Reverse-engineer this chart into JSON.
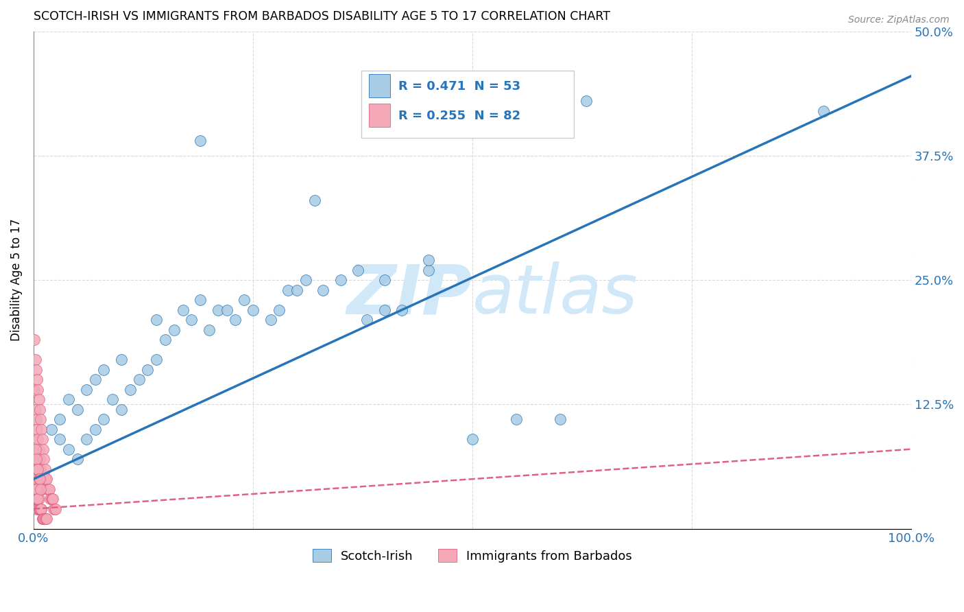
{
  "title": "SCOTCH-IRISH VS IMMIGRANTS FROM BARBADOS DISABILITY AGE 5 TO 17 CORRELATION CHART",
  "source": "Source: ZipAtlas.com",
  "ylabel": "Disability Age 5 to 17",
  "xlim": [
    0,
    1.0
  ],
  "ylim": [
    0,
    0.5
  ],
  "legend_label1": "Scotch-Irish",
  "legend_label2": "Immigrants from Barbados",
  "R1": 0.471,
  "N1": 53,
  "R2": 0.255,
  "N2": 82,
  "color_blue": "#a8cce4",
  "color_pink": "#f4a8b8",
  "color_blue_dark": "#2874b8",
  "color_pink_dark": "#e06080",
  "color_axis_labels": "#2874b8",
  "watermark_color": "#d0e8f8",
  "scotch_irish_x": [
    0.02,
    0.03,
    0.03,
    0.04,
    0.04,
    0.05,
    0.05,
    0.06,
    0.06,
    0.07,
    0.07,
    0.08,
    0.08,
    0.09,
    0.1,
    0.1,
    0.11,
    0.12,
    0.13,
    0.14,
    0.14,
    0.15,
    0.16,
    0.17,
    0.18,
    0.19,
    0.2,
    0.21,
    0.22,
    0.23,
    0.24,
    0.25,
    0.27,
    0.28,
    0.29,
    0.3,
    0.31,
    0.33,
    0.35,
    0.37,
    0.38,
    0.4,
    0.4,
    0.42,
    0.45,
    0.5,
    0.55,
    0.6,
    0.63,
    0.9,
    0.19,
    0.32,
    0.45
  ],
  "scotch_irish_y": [
    0.1,
    0.09,
    0.11,
    0.08,
    0.13,
    0.07,
    0.12,
    0.09,
    0.14,
    0.1,
    0.15,
    0.11,
    0.16,
    0.13,
    0.12,
    0.17,
    0.14,
    0.15,
    0.16,
    0.17,
    0.21,
    0.19,
    0.2,
    0.22,
    0.21,
    0.23,
    0.2,
    0.22,
    0.22,
    0.21,
    0.23,
    0.22,
    0.21,
    0.22,
    0.24,
    0.24,
    0.25,
    0.24,
    0.25,
    0.26,
    0.21,
    0.22,
    0.25,
    0.22,
    0.26,
    0.09,
    0.11,
    0.11,
    0.43,
    0.42,
    0.39,
    0.33,
    0.27
  ],
  "barbados_x": [
    0.001,
    0.001,
    0.001,
    0.002,
    0.002,
    0.002,
    0.003,
    0.003,
    0.003,
    0.004,
    0.004,
    0.004,
    0.005,
    0.005,
    0.005,
    0.006,
    0.006,
    0.007,
    0.007,
    0.008,
    0.008,
    0.009,
    0.009,
    0.01,
    0.01,
    0.011,
    0.012,
    0.013,
    0.014,
    0.015,
    0.016,
    0.017,
    0.018,
    0.019,
    0.02,
    0.021,
    0.022,
    0.023,
    0.024,
    0.025,
    0.001,
    0.001,
    0.002,
    0.002,
    0.003,
    0.003,
    0.004,
    0.004,
    0.005,
    0.005,
    0.006,
    0.006,
    0.007,
    0.008,
    0.009,
    0.01,
    0.011,
    0.012,
    0.013,
    0.014,
    0.001,
    0.002,
    0.003,
    0.004,
    0.005,
    0.006,
    0.007,
    0.008,
    0.009,
    0.01,
    0.011,
    0.012,
    0.013,
    0.014,
    0.015,
    0.002,
    0.003,
    0.004,
    0.005,
    0.006,
    0.007,
    0.008
  ],
  "barbados_y": [
    0.19,
    0.14,
    0.09,
    0.17,
    0.12,
    0.07,
    0.16,
    0.11,
    0.06,
    0.15,
    0.1,
    0.05,
    0.14,
    0.09,
    0.04,
    0.13,
    0.08,
    0.12,
    0.07,
    0.11,
    0.06,
    0.1,
    0.05,
    0.09,
    0.04,
    0.08,
    0.07,
    0.06,
    0.05,
    0.05,
    0.04,
    0.04,
    0.04,
    0.03,
    0.03,
    0.03,
    0.03,
    0.02,
    0.02,
    0.02,
    0.05,
    0.03,
    0.05,
    0.03,
    0.05,
    0.03,
    0.04,
    0.02,
    0.04,
    0.02,
    0.03,
    0.02,
    0.02,
    0.02,
    0.02,
    0.01,
    0.01,
    0.01,
    0.01,
    0.01,
    0.06,
    0.04,
    0.04,
    0.03,
    0.03,
    0.02,
    0.02,
    0.02,
    0.02,
    0.01,
    0.01,
    0.01,
    0.01,
    0.01,
    0.01,
    0.08,
    0.07,
    0.06,
    0.06,
    0.05,
    0.05,
    0.04
  ],
  "blue_line_x": [
    0.0,
    1.0
  ],
  "blue_line_y": [
    0.05,
    0.455
  ],
  "pink_line_x": [
    0.0,
    1.0
  ],
  "pink_line_y": [
    0.02,
    0.08
  ]
}
